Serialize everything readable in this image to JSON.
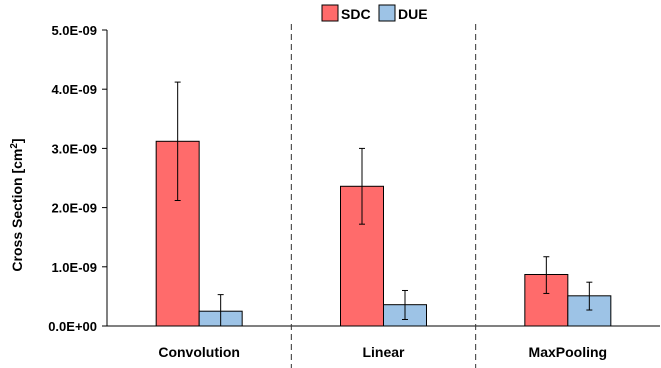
{
  "chart_data": {
    "type": "bar",
    "categories": [
      "Convolution",
      "Linear",
      "MaxPooling"
    ],
    "series": [
      {
        "name": "SDC",
        "color": "#ff6b6b",
        "values": [
          3.12e-09,
          2.36e-09,
          8.7e-10
        ],
        "error_low": [
          2.12e-09,
          1.72e-09,
          5.5e-10
        ],
        "error_high": [
          4.12e-09,
          3e-09,
          1.17e-09
        ]
      },
      {
        "name": "DUE",
        "color": "#9dc3e6",
        "values": [
          2.5e-10,
          3.6e-10,
          5.1e-10
        ],
        "error_low": [
          0.0,
          1.1e-10,
          2.7e-10
        ],
        "error_high": [
          5.3e-10,
          6e-10,
          7.4e-10
        ]
      }
    ],
    "ylabel_main": "Cross Section [cm",
    "ylabel_sup": "2",
    "ylabel_end": "]",
    "ylim": [
      0,
      5e-09
    ],
    "yticks": [
      0,
      1e-09,
      2e-09,
      3e-09,
      4e-09,
      5e-09
    ],
    "ytick_labels": [
      "0.0E+00",
      "1.0E-09",
      "2.0E-09",
      "3.0E-09",
      "4.0E-09",
      "5.0E-09"
    ],
    "legend_position": "top-center",
    "category_separators": "dashed"
  }
}
